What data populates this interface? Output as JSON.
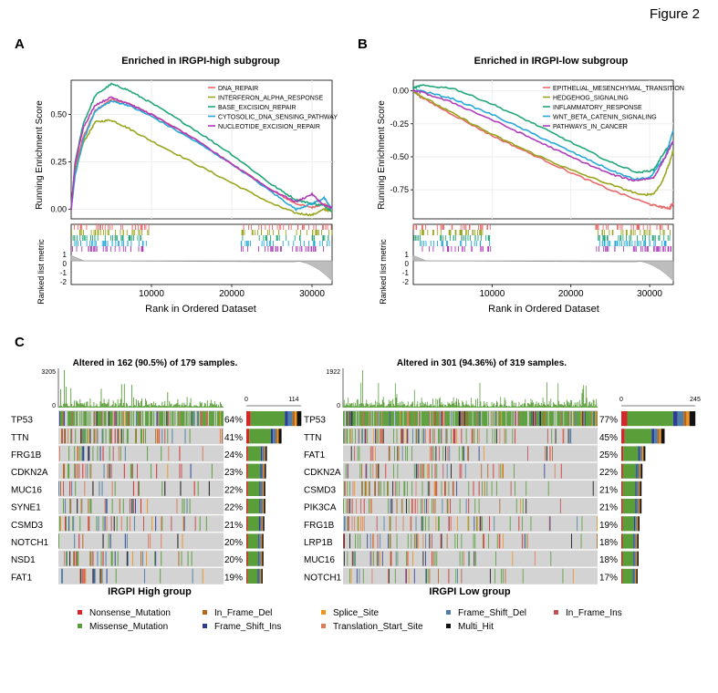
{
  "figure_label": "Figure 2",
  "colors": {
    "nonsense": "#d62728",
    "missense": "#5a9e3a",
    "in_frame_del": "#b5651d",
    "frame_shift_ins": "#2c3e91",
    "splice_site": "#f0941c",
    "translation_start": "#e07b5a",
    "frame_shift_del": "#4f7fa8",
    "multi_hit": "#111111",
    "in_frame_ins": "#c44e52",
    "bg": "#d3d3d3"
  },
  "chart_data": [
    {
      "panel": "A",
      "type": "line",
      "title": "Enriched in IRGPI-high subgroup",
      "ylabel": "Running Enrichment Score",
      "xlabel": "Rank in Ordered Dataset",
      "ylabel2": "Ranked list metric",
      "ylim": [
        -0.05,
        0.68
      ],
      "xlim": [
        0,
        32500
      ],
      "yticks": [
        "0.00",
        "0.25",
        "0.50"
      ],
      "yticks_val": [
        0,
        0.25,
        0.5
      ],
      "xticks": [
        "10000",
        "20000",
        "30000"
      ],
      "xticks_val": [
        10000,
        20000,
        30000
      ],
      "metric_ticks": [
        "1",
        "0",
        "-1",
        "-2"
      ],
      "series": [
        {
          "name": "DNA_REPAIR",
          "color": "#e8696b",
          "x": [
            0,
            500,
            1500,
            3000,
            5000,
            7000,
            10000,
            15000,
            20000,
            25000,
            28000,
            30000,
            31500,
            32500
          ],
          "y": [
            0,
            0.22,
            0.38,
            0.52,
            0.58,
            0.56,
            0.5,
            0.38,
            0.24,
            0.1,
            0.03,
            0.01,
            0.03,
            0.0
          ]
        },
        {
          "name": "INTERFERON_ALPHA_RESPONSE",
          "color": "#9aa51e",
          "x": [
            0,
            500,
            1500,
            3000,
            5000,
            7000,
            10000,
            15000,
            20000,
            25000,
            28000,
            30000,
            31500,
            32500
          ],
          "y": [
            0,
            0.2,
            0.35,
            0.46,
            0.47,
            0.43,
            0.36,
            0.25,
            0.14,
            0.03,
            -0.02,
            -0.03,
            0.0,
            -0.01
          ]
        },
        {
          "name": "BASE_EXCISION_REPAIR",
          "color": "#21a67a",
          "x": [
            0,
            500,
            1500,
            3000,
            5000,
            7000,
            10000,
            15000,
            20000,
            25000,
            28000,
            30000,
            31500,
            32500
          ],
          "y": [
            0,
            0.25,
            0.45,
            0.6,
            0.66,
            0.63,
            0.56,
            0.43,
            0.29,
            0.13,
            0.05,
            0.03,
            0.02,
            -0.01
          ]
        },
        {
          "name": "CYTOSOLIC_DNA_SENSING_PATHWAY",
          "color": "#27a9d8",
          "x": [
            0,
            500,
            1500,
            3000,
            5000,
            7000,
            10000,
            15000,
            20000,
            25000,
            28000,
            30000,
            31500,
            32500
          ],
          "y": [
            0,
            0.18,
            0.36,
            0.52,
            0.57,
            0.55,
            0.49,
            0.37,
            0.24,
            0.09,
            0.0,
            0.03,
            0.06,
            0.0
          ]
        },
        {
          "name": "NUCLEOTIDE_EXCISION_REPAIR",
          "color": "#b03cb8",
          "x": [
            0,
            500,
            1500,
            3000,
            5000,
            7000,
            10000,
            15000,
            20000,
            25000,
            28000,
            30000,
            31500,
            32500
          ],
          "y": [
            0,
            0.24,
            0.43,
            0.55,
            0.59,
            0.56,
            0.5,
            0.38,
            0.24,
            0.1,
            0.04,
            0.08,
            0.02,
            0.01
          ]
        }
      ]
    },
    {
      "panel": "B",
      "type": "line",
      "title": "Enriched in IRGPI-low subgroup",
      "ylabel": "Running Enrichment Score",
      "xlabel": "Rank in Ordered Dataset",
      "ylabel2": "Ranked list metric",
      "ylim": [
        -0.97,
        0.08
      ],
      "xlim": [
        0,
        33000
      ],
      "yticks": [
        "0.00",
        "-0.25",
        "-0.50",
        "-0.75"
      ],
      "yticks_val": [
        0,
        -0.25,
        -0.5,
        -0.75
      ],
      "xticks": [
        "10000",
        "20000",
        "30000"
      ],
      "xticks_val": [
        10000,
        20000,
        30000
      ],
      "metric_ticks": [
        "1",
        "0",
        "-1",
        "-2"
      ],
      "series": [
        {
          "name": "EPITHELIAL_MESENCHYMAL_TRANSITION",
          "color": "#e8696b",
          "x": [
            0,
            1000,
            5000,
            10000,
            15000,
            20000,
            25000,
            30000,
            31500,
            32500,
            33000
          ],
          "y": [
            0,
            -0.05,
            -0.18,
            -0.34,
            -0.48,
            -0.62,
            -0.75,
            -0.86,
            -0.88,
            -0.89,
            -0.85
          ]
        },
        {
          "name": "HEDGEHOG_SIGNALING",
          "color": "#9aa51e",
          "x": [
            0,
            1000,
            5000,
            10000,
            15000,
            20000,
            25000,
            29000,
            30500,
            31500,
            32500,
            33000
          ],
          "y": [
            0,
            -0.04,
            -0.17,
            -0.33,
            -0.47,
            -0.6,
            -0.71,
            -0.79,
            -0.78,
            -0.7,
            -0.55,
            -0.45
          ]
        },
        {
          "name": "INFLAMMATORY_RESPONSE",
          "color": "#21a67a",
          "x": [
            0,
            1000,
            5000,
            10000,
            15000,
            20000,
            25000,
            28500,
            30500,
            32000,
            33000
          ],
          "y": [
            0.02,
            0.04,
            0.02,
            -0.1,
            -0.24,
            -0.39,
            -0.54,
            -0.62,
            -0.6,
            -0.45,
            -0.4
          ]
        },
        {
          "name": "WNT_BETA_CATENIN_SIGNALING",
          "color": "#27a9d8",
          "x": [
            0,
            1000,
            5000,
            10000,
            15000,
            20000,
            25000,
            28000,
            30000,
            32000,
            33000
          ],
          "y": [
            0,
            0.0,
            -0.06,
            -0.18,
            -0.32,
            -0.46,
            -0.6,
            -0.67,
            -0.66,
            -0.5,
            -0.3
          ]
        },
        {
          "name": "PATHWAYS_IN_CANCER",
          "color": "#b03cb8",
          "x": [
            0,
            1000,
            5000,
            10000,
            15000,
            20000,
            25000,
            28000,
            30500,
            32000,
            33000
          ],
          "y": [
            0,
            -0.01,
            -0.09,
            -0.22,
            -0.36,
            -0.5,
            -0.63,
            -0.68,
            -0.66,
            -0.5,
            -0.38
          ]
        }
      ]
    },
    {
      "panel": "C-left",
      "type": "heatmap",
      "title": "Altered in 162 (90.5%) of 179 samples.",
      "caption": "IRGPI High group",
      "tmb_max_label": "3205",
      "tmb_zero_label": "0",
      "bar_ticks": [
        "0",
        "114"
      ],
      "genes": [
        "TP53",
        "TTN",
        "FRG1B",
        "CDKN2A",
        "MUC16",
        "SYNE1",
        "CSMD3",
        "NOTCH1",
        "NSD1",
        "FAT1"
      ],
      "percents": [
        "64%",
        "41%",
        "24%",
        "23%",
        "22%",
        "22%",
        "21%",
        "20%",
        "20%",
        "19%"
      ],
      "values": [
        64,
        41,
        24,
        23,
        22,
        22,
        21,
        20,
        20,
        19
      ]
    },
    {
      "panel": "C-right",
      "type": "heatmap",
      "title": "Altered in 301 (94.36%) of 319 samples.",
      "caption": "IRGPI Low group",
      "tmb_max_label": "1922",
      "tmb_zero_label": "0",
      "bar_ticks": [
        "0",
        "245"
      ],
      "genes": [
        "TP53",
        "TTN",
        "FAT1",
        "CDKN2A",
        "CSMD3",
        "PIK3CA",
        "FRG1B",
        "LRP1B",
        "MUC16",
        "NOTCH1"
      ],
      "percents": [
        "77%",
        "45%",
        "25%",
        "22%",
        "21%",
        "21%",
        "19%",
        "18%",
        "18%",
        "17%"
      ],
      "values": [
        77,
        45,
        25,
        22,
        21,
        21,
        19,
        18,
        18,
        17
      ]
    }
  ],
  "panel_labels": {
    "a": "A",
    "b": "B",
    "c": "C"
  },
  "legend": [
    {
      "label": "Nonsense_Mutation",
      "color": "#d62728"
    },
    {
      "label": "In_Frame_Del",
      "color": "#b5651d"
    },
    {
      "label": "Splice_Site",
      "color": "#f0941c"
    },
    {
      "label": "Frame_Shift_Del",
      "color": "#4f7fa8"
    },
    {
      "label": "In_Frame_Ins",
      "color": "#c44e52"
    },
    {
      "label": "Missense_Mutation",
      "color": "#5a9e3a"
    },
    {
      "label": "Frame_Shift_Ins",
      "color": "#2c3e91"
    },
    {
      "label": "Translation_Start_Site",
      "color": "#e07b5a"
    },
    {
      "label": "Multi_Hit",
      "color": "#111111"
    }
  ]
}
